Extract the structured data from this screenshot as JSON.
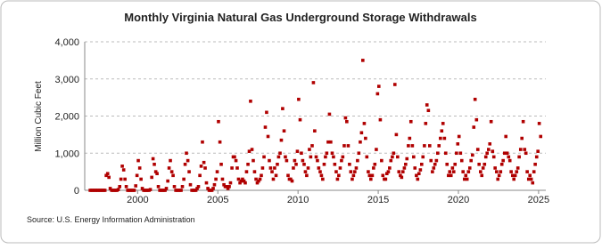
{
  "chart_data": {
    "type": "scatter",
    "title": "Monthly Virginia Natural  Gas Underground Storage Withdrawals",
    "y_label": "Million Cubic Feet",
    "source": "Source: U.S. Energy Information Administration",
    "color": "#b00000",
    "grid": true,
    "xlim": [
      1996.7,
      2025.45
    ],
    "xticks": [
      2000,
      2005,
      2010,
      2015,
      2020,
      2025
    ],
    "ylim": [
      0,
      4000
    ],
    "yticks": [
      0,
      {
        "value": 1000,
        "label": "1,000"
      },
      {
        "value": 2000,
        "label": "2,000"
      },
      {
        "value": 3000,
        "label": "3,000"
      },
      {
        "value": 4000,
        "label": "4,000"
      }
    ],
    "x": [
      1997.04,
      1997.13,
      1997.21,
      1997.29,
      1997.38,
      1997.46,
      1997.54,
      1997.63,
      1997.71,
      1997.79,
      1997.88,
      1997.96,
      1998.04,
      1998.13,
      1998.21,
      1998.29,
      1998.38,
      1998.46,
      1998.54,
      1998.63,
      1998.71,
      1998.79,
      1998.88,
      1998.96,
      1999.04,
      1999.13,
      1999.21,
      1999.29,
      1999.38,
      1999.46,
      1999.54,
      1999.63,
      1999.71,
      1999.79,
      1999.88,
      1999.96,
      2000.04,
      2000.13,
      2000.21,
      2000.29,
      2000.38,
      2000.46,
      2000.54,
      2000.63,
      2000.71,
      2000.79,
      2000.88,
      2000.96,
      2001.04,
      2001.13,
      2001.21,
      2001.29,
      2001.38,
      2001.46,
      2001.54,
      2001.63,
      2001.71,
      2001.79,
      2001.88,
      2001.96,
      2002.04,
      2002.13,
      2002.21,
      2002.29,
      2002.38,
      2002.46,
      2002.54,
      2002.63,
      2002.71,
      2002.79,
      2002.88,
      2002.96,
      2003.04,
      2003.13,
      2003.21,
      2003.29,
      2003.38,
      2003.46,
      2003.54,
      2003.63,
      2003.71,
      2003.79,
      2003.88,
      2003.96,
      2004.04,
      2004.13,
      2004.21,
      2004.29,
      2004.38,
      2004.46,
      2004.54,
      2004.63,
      2004.71,
      2004.79,
      2004.88,
      2004.96,
      2005.04,
      2005.13,
      2005.21,
      2005.29,
      2005.38,
      2005.46,
      2005.54,
      2005.63,
      2005.71,
      2005.79,
      2005.88,
      2005.96,
      2006.04,
      2006.13,
      2006.21,
      2006.29,
      2006.38,
      2006.46,
      2006.54,
      2006.63,
      2006.71,
      2006.79,
      2006.88,
      2006.96,
      2007.04,
      2007.13,
      2007.21,
      2007.29,
      2007.38,
      2007.46,
      2007.54,
      2007.63,
      2007.71,
      2007.79,
      2007.88,
      2007.96,
      2008.04,
      2008.13,
      2008.21,
      2008.29,
      2008.38,
      2008.46,
      2008.54,
      2008.63,
      2008.71,
      2008.79,
      2008.88,
      2008.96,
      2009.04,
      2009.13,
      2009.21,
      2009.29,
      2009.38,
      2009.46,
      2009.54,
      2009.63,
      2009.71,
      2009.79,
      2009.88,
      2009.96,
      2010.04,
      2010.13,
      2010.21,
      2010.29,
      2010.38,
      2010.46,
      2010.54,
      2010.63,
      2010.71,
      2010.79,
      2010.88,
      2010.96,
      2011.04,
      2011.13,
      2011.21,
      2011.29,
      2011.38,
      2011.46,
      2011.54,
      2011.63,
      2011.71,
      2011.79,
      2011.88,
      2011.96,
      2012.04,
      2012.13,
      2012.21,
      2012.29,
      2012.38,
      2012.46,
      2012.54,
      2012.63,
      2012.71,
      2012.79,
      2012.88,
      2012.96,
      2013.04,
      2013.13,
      2013.21,
      2013.29,
      2013.38,
      2013.46,
      2013.54,
      2013.63,
      2013.71,
      2013.79,
      2013.88,
      2013.96,
      2014.04,
      2014.13,
      2014.21,
      2014.29,
      2014.38,
      2014.46,
      2014.54,
      2014.63,
      2014.71,
      2014.79,
      2014.88,
      2014.96,
      2015.04,
      2015.13,
      2015.21,
      2015.29,
      2015.38,
      2015.46,
      2015.54,
      2015.63,
      2015.71,
      2015.79,
      2015.88,
      2015.96,
      2016.04,
      2016.13,
      2016.21,
      2016.29,
      2016.38,
      2016.46,
      2016.54,
      2016.63,
      2016.71,
      2016.79,
      2016.88,
      2016.96,
      2017.04,
      2017.13,
      2017.21,
      2017.29,
      2017.38,
      2017.46,
      2017.54,
      2017.63,
      2017.71,
      2017.79,
      2017.88,
      2017.96,
      2018.04,
      2018.13,
      2018.21,
      2018.29,
      2018.38,
      2018.46,
      2018.54,
      2018.63,
      2018.71,
      2018.79,
      2018.88,
      2018.96,
      2019.04,
      2019.13,
      2019.21,
      2019.29,
      2019.38,
      2019.46,
      2019.54,
      2019.63,
      2019.71,
      2019.79,
      2019.88,
      2019.96,
      2020.04,
      2020.13,
      2020.21,
      2020.29,
      2020.38,
      2020.46,
      2020.54,
      2020.63,
      2020.71,
      2020.79,
      2020.88,
      2020.96,
      2021.04,
      2021.13,
      2021.21,
      2021.29,
      2021.38,
      2021.46,
      2021.54,
      2021.63,
      2021.71,
      2021.79,
      2021.88,
      2021.96,
      2022.04,
      2022.13,
      2022.21,
      2022.29,
      2022.38,
      2022.46,
      2022.54,
      2022.63,
      2022.71,
      2022.79,
      2022.88,
      2022.96,
      2023.04,
      2023.13,
      2023.21,
      2023.29,
      2023.38,
      2023.46,
      2023.54,
      2023.63,
      2023.71,
      2023.79,
      2023.88,
      2023.96,
      2024.04,
      2024.13,
      2024.21,
      2024.29,
      2024.38,
      2024.46,
      2024.54,
      2024.63,
      2024.71,
      2024.79,
      2024.88,
      2024.96,
      2025.04,
      2025.13
    ],
    "values": [
      0,
      0,
      0,
      0,
      0,
      0,
      0,
      0,
      0,
      0,
      0,
      0,
      400,
      450,
      350,
      50,
      0,
      0,
      0,
      0,
      0,
      20,
      100,
      300,
      650,
      550,
      300,
      100,
      0,
      0,
      0,
      0,
      0,
      0,
      120,
      400,
      800,
      600,
      300,
      50,
      0,
      0,
      0,
      0,
      0,
      20,
      350,
      850,
      700,
      500,
      450,
      100,
      0,
      0,
      0,
      0,
      0,
      50,
      250,
      600,
      800,
      500,
      400,
      100,
      0,
      0,
      0,
      0,
      0,
      100,
      300,
      700,
      1000,
      800,
      500,
      150,
      0,
      0,
      0,
      0,
      50,
      100,
      400,
      650,
      1300,
      750,
      600,
      200,
      50,
      0,
      0,
      0,
      50,
      150,
      300,
      500,
      1850,
      1300,
      700,
      300,
      150,
      100,
      100,
      50,
      100,
      200,
      600,
      900,
      900,
      800,
      600,
      300,
      200,
      250,
      300,
      250,
      200,
      500,
      700,
      1050,
      2400,
      1100,
      800,
      500,
      300,
      200,
      250,
      300,
      400,
      600,
      900,
      1700,
      2100,
      1450,
      800,
      600,
      500,
      300,
      600,
      400,
      700,
      900,
      1000,
      1350,
      2200,
      1600,
      900,
      800,
      400,
      300,
      300,
      250,
      600,
      800,
      700,
      1050,
      2450,
      1900,
      1000,
      800,
      700,
      500,
      400,
      600,
      1100,
      900,
      1200,
      2900,
      1600,
      900,
      800,
      600,
      500,
      400,
      300,
      700,
      900,
      1000,
      1300,
      2050,
      1300,
      1000,
      900,
      700,
      500,
      300,
      400,
      600,
      800,
      900,
      1200,
      1950,
      1850,
      1200,
      700,
      500,
      300,
      400,
      500,
      600,
      800,
      1000,
      1300,
      1550,
      3500,
      1800,
      1400,
      900,
      500,
      400,
      300,
      400,
      600,
      700,
      1100,
      2600,
      2800,
      1900,
      800,
      400,
      300,
      300,
      450,
      500,
      600,
      800,
      900,
      1000,
      2850,
      1500,
      900,
      500,
      400,
      350,
      500,
      600,
      700,
      850,
      1200,
      1400,
      1850,
      1200,
      900,
      600,
      400,
      300,
      450,
      550,
      700,
      900,
      1200,
      1800,
      2300,
      2150,
      1200,
      800,
      500,
      600,
      700,
      800,
      1000,
      1200,
      1400,
      1600,
      1800,
      1400,
      1000,
      700,
      400,
      500,
      400,
      600,
      500,
      700,
      1000,
      1250,
      1450,
      1000,
      800,
      500,
      300,
      400,
      300,
      500,
      600,
      800,
      950,
      1700,
      2450,
      1900,
      1100,
      700,
      500,
      400,
      600,
      700,
      900,
      1000,
      1100,
      1250,
      1850,
      1050,
      900,
      600,
      500,
      300,
      400,
      500,
      700,
      800,
      1000,
      1450,
      1000,
      900,
      800,
      500,
      400,
      300,
      400,
      500,
      600,
      900,
      1100,
      1400,
      1850,
      1100,
      1000,
      500,
      300,
      400,
      300,
      200,
      500,
      700,
      900,
      1050,
      1800,
      1450
    ]
  }
}
